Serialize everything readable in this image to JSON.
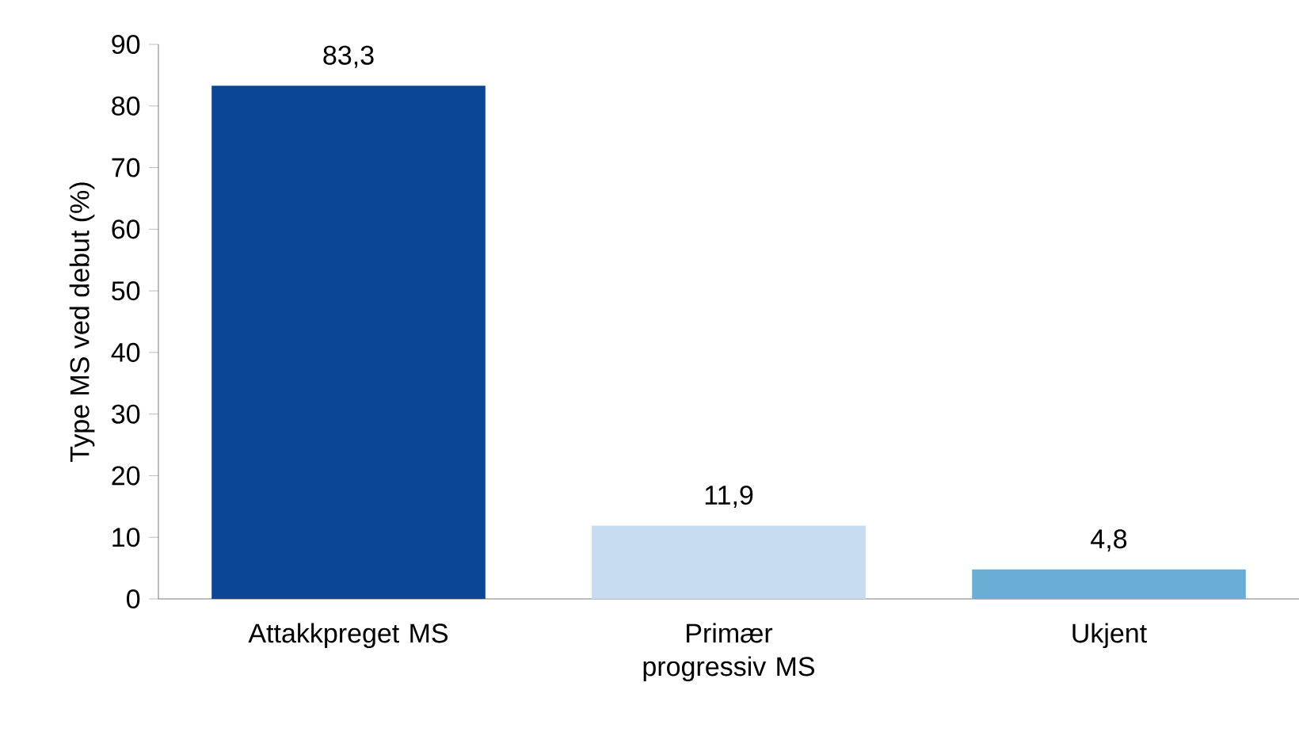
{
  "chart_data": {
    "type": "bar",
    "ylabel": "Type MS ved debut (%)",
    "categories": [
      "Attakkpreget MS",
      "Primær progressiv MS",
      "Ukjent"
    ],
    "values": [
      83.3,
      11.9,
      4.8
    ],
    "colors": [
      "#0b4595",
      "#c6dbf0",
      "#6aaed6"
    ],
    "value_labels": [
      "83,3",
      "11,9",
      "4,8"
    ],
    "ylim": [
      0,
      90
    ],
    "yticks": [
      0,
      10,
      20,
      30,
      40,
      50,
      60,
      70,
      80,
      90
    ],
    "grid": false
  }
}
